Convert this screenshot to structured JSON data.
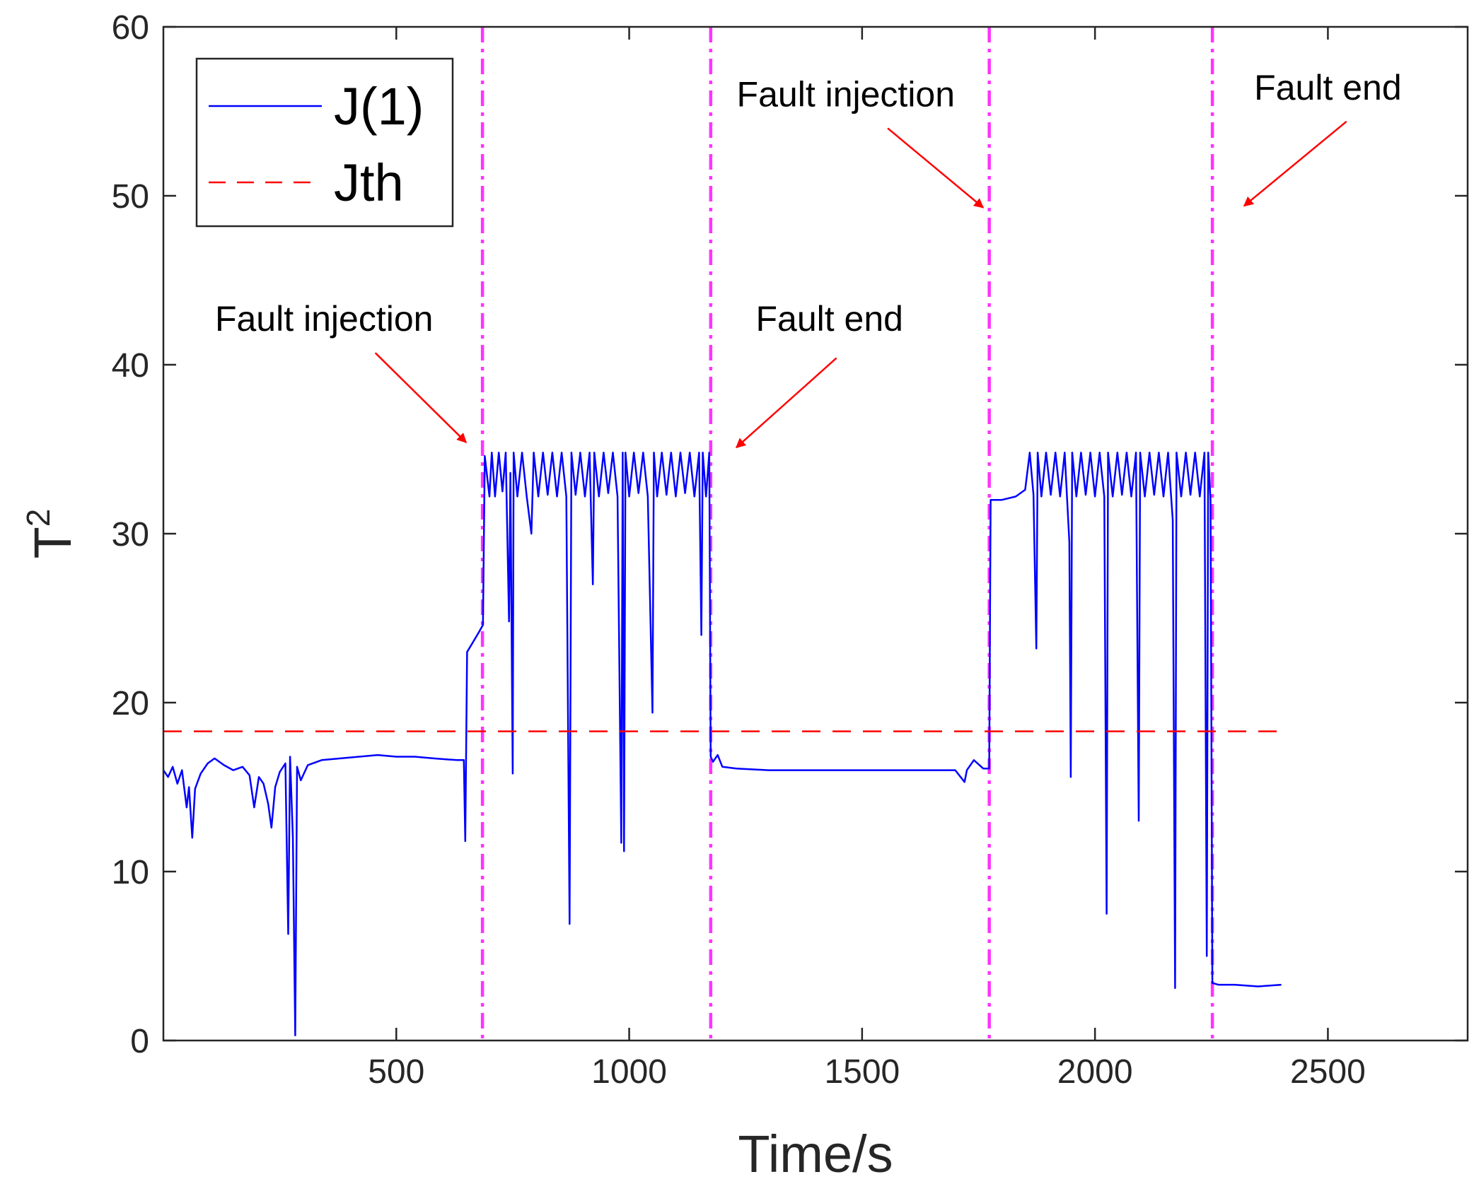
{
  "chart_data": {
    "type": "line",
    "title": "",
    "xlabel": "Time/s",
    "ylabel": "T",
    "ylabel_superscript": "2",
    "xlim": [
      0,
      2800
    ],
    "ylim": [
      0,
      60
    ],
    "xticks": [
      500,
      1000,
      1500,
      2000,
      2500
    ],
    "yticks": [
      0,
      10,
      20,
      30,
      40,
      50,
      60
    ],
    "legend": {
      "position": "top-left",
      "entries": [
        {
          "label": "J(1)",
          "color": "#0000ff",
          "style": "solid"
        },
        {
          "label": "Jth",
          "color": "#ff0000",
          "style": "dashed"
        }
      ]
    },
    "series": [
      {
        "name": "J(1)",
        "color": "#0000ff",
        "points": [
          [
            0,
            16.0
          ],
          [
            10,
            15.6
          ],
          [
            20,
            16.2
          ],
          [
            30,
            15.2
          ],
          [
            40,
            16.0
          ],
          [
            50,
            13.8
          ],
          [
            55,
            15.0
          ],
          [
            62,
            12.0
          ],
          [
            68,
            14.9
          ],
          [
            80,
            15.8
          ],
          [
            95,
            16.4
          ],
          [
            110,
            16.7
          ],
          [
            130,
            16.3
          ],
          [
            150,
            16.0
          ],
          [
            170,
            16.2
          ],
          [
            185,
            15.7
          ],
          [
            195,
            13.8
          ],
          [
            205,
            15.6
          ],
          [
            215,
            15.2
          ],
          [
            225,
            14.0
          ],
          [
            232,
            12.6
          ],
          [
            240,
            15.0
          ],
          [
            250,
            15.9
          ],
          [
            262,
            16.4
          ],
          [
            268,
            6.3
          ],
          [
            272,
            16.8
          ],
          [
            278,
            12.0
          ],
          [
            283,
            0.3
          ],
          [
            287,
            16.2
          ],
          [
            295,
            15.4
          ],
          [
            310,
            16.3
          ],
          [
            340,
            16.6
          ],
          [
            380,
            16.7
          ],
          [
            420,
            16.8
          ],
          [
            460,
            16.9
          ],
          [
            500,
            16.8
          ],
          [
            540,
            16.8
          ],
          [
            580,
            16.7
          ],
          [
            630,
            16.6
          ],
          [
            645,
            16.6
          ],
          [
            648,
            11.8
          ],
          [
            652,
            23.0
          ],
          [
            665,
            23.6
          ],
          [
            678,
            24.2
          ],
          [
            686,
            24.6
          ],
          [
            690,
            34.6
          ],
          [
            700,
            32.2
          ],
          [
            705,
            34.8
          ],
          [
            712,
            32.2
          ],
          [
            720,
            34.8
          ],
          [
            728,
            32.5
          ],
          [
            735,
            34.8
          ],
          [
            742,
            24.8
          ],
          [
            745,
            33.6
          ],
          [
            750,
            15.8
          ],
          [
            752,
            34.8
          ],
          [
            760,
            32.2
          ],
          [
            770,
            34.8
          ],
          [
            780,
            32.2
          ],
          [
            790,
            30.0
          ],
          [
            795,
            34.8
          ],
          [
            805,
            32.2
          ],
          [
            815,
            34.8
          ],
          [
            825,
            32.3
          ],
          [
            835,
            34.8
          ],
          [
            845,
            32.2
          ],
          [
            855,
            34.8
          ],
          [
            865,
            32.2
          ],
          [
            872,
            6.9
          ],
          [
            876,
            34.8
          ],
          [
            885,
            32.3
          ],
          [
            895,
            34.8
          ],
          [
            905,
            32.2
          ],
          [
            915,
            34.8
          ],
          [
            922,
            27.0
          ],
          [
            925,
            34.8
          ],
          [
            935,
            32.2
          ],
          [
            945,
            34.8
          ],
          [
            955,
            32.4
          ],
          [
            965,
            34.8
          ],
          [
            975,
            32.2
          ],
          [
            983,
            11.7
          ],
          [
            986,
            34.8
          ],
          [
            989,
            11.2
          ],
          [
            992,
            34.8
          ],
          [
            1000,
            32.2
          ],
          [
            1010,
            34.8
          ],
          [
            1020,
            32.4
          ],
          [
            1030,
            34.8
          ],
          [
            1040,
            32.2
          ],
          [
            1050,
            19.4
          ],
          [
            1053,
            34.8
          ],
          [
            1060,
            32.2
          ],
          [
            1070,
            34.8
          ],
          [
            1080,
            32.3
          ],
          [
            1090,
            34.8
          ],
          [
            1100,
            32.2
          ],
          [
            1110,
            34.8
          ],
          [
            1120,
            32.4
          ],
          [
            1130,
            34.8
          ],
          [
            1140,
            32.2
          ],
          [
            1150,
            34.8
          ],
          [
            1155,
            24.0
          ],
          [
            1158,
            34.8
          ],
          [
            1165,
            32.2
          ],
          [
            1172,
            34.8
          ],
          [
            1175,
            16.8
          ],
          [
            1180,
            16.5
          ],
          [
            1190,
            16.9
          ],
          [
            1200,
            16.2
          ],
          [
            1230,
            16.1
          ],
          [
            1300,
            16.0
          ],
          [
            1400,
            16.0
          ],
          [
            1500,
            16.0
          ],
          [
            1600,
            16.0
          ],
          [
            1700,
            16.0
          ],
          [
            1720,
            15.3
          ],
          [
            1725,
            16.0
          ],
          [
            1740,
            16.6
          ],
          [
            1760,
            16.1
          ],
          [
            1773,
            16.1
          ],
          [
            1776,
            32.0
          ],
          [
            1800,
            32.0
          ],
          [
            1830,
            32.2
          ],
          [
            1850,
            32.6
          ],
          [
            1860,
            34.8
          ],
          [
            1868,
            32.3
          ],
          [
            1874,
            23.2
          ],
          [
            1877,
            34.8
          ],
          [
            1885,
            32.2
          ],
          [
            1895,
            34.8
          ],
          [
            1905,
            32.3
          ],
          [
            1915,
            34.8
          ],
          [
            1925,
            32.2
          ],
          [
            1935,
            34.8
          ],
          [
            1945,
            29.5
          ],
          [
            1948,
            15.6
          ],
          [
            1951,
            34.8
          ],
          [
            1960,
            32.2
          ],
          [
            1970,
            34.8
          ],
          [
            1980,
            32.3
          ],
          [
            1990,
            34.8
          ],
          [
            2000,
            32.2
          ],
          [
            2010,
            34.8
          ],
          [
            2020,
            32.2
          ],
          [
            2025,
            7.5
          ],
          [
            2028,
            34.8
          ],
          [
            2038,
            32.2
          ],
          [
            2048,
            34.8
          ],
          [
            2058,
            32.3
          ],
          [
            2068,
            34.8
          ],
          [
            2078,
            32.2
          ],
          [
            2088,
            34.8
          ],
          [
            2094,
            13.0
          ],
          [
            2097,
            34.8
          ],
          [
            2107,
            32.2
          ],
          [
            2117,
            34.8
          ],
          [
            2127,
            32.3
          ],
          [
            2137,
            34.8
          ],
          [
            2147,
            32.2
          ],
          [
            2157,
            34.8
          ],
          [
            2167,
            30.8
          ],
          [
            2172,
            3.1
          ],
          [
            2175,
            34.8
          ],
          [
            2185,
            32.2
          ],
          [
            2195,
            34.8
          ],
          [
            2205,
            32.3
          ],
          [
            2215,
            34.8
          ],
          [
            2225,
            32.2
          ],
          [
            2235,
            34.8
          ],
          [
            2240,
            5.0
          ],
          [
            2243,
            34.8
          ],
          [
            2248,
            32.0
          ],
          [
            2252,
            3.4
          ],
          [
            2265,
            3.3
          ],
          [
            2300,
            3.3
          ],
          [
            2350,
            3.2
          ],
          [
            2400,
            3.3
          ]
        ]
      },
      {
        "name": "Jth",
        "color": "#ff0000",
        "points": [
          [
            0,
            18.3
          ],
          [
            2400,
            18.3
          ]
        ]
      }
    ],
    "vertical_lines": [
      {
        "x": 685,
        "color": "#ff33ff",
        "style": "dashdot"
      },
      {
        "x": 1175,
        "color": "#ff33ff",
        "style": "dashdot"
      },
      {
        "x": 1773,
        "color": "#ff33ff",
        "style": "dashdot"
      },
      {
        "x": 2252,
        "color": "#ff33ff",
        "style": "dashdot"
      }
    ],
    "annotations": [
      {
        "text": "Fault injection",
        "text_at": [
          345,
          42.0
        ],
        "arrow_from": [
          455,
          40.7
        ],
        "arrow_to": [
          650,
          35.4
        ]
      },
      {
        "text": "Fault end",
        "text_at": [
          1430,
          42.0
        ],
        "arrow_from": [
          1445,
          40.4
        ],
        "arrow_to": [
          1230,
          35.1
        ]
      },
      {
        "text": "Fault injection",
        "text_at": [
          1465,
          55.3
        ],
        "arrow_from": [
          1555,
          54.0
        ],
        "arrow_to": [
          1760,
          49.3
        ]
      },
      {
        "text": "Fault end",
        "text_at": [
          2500,
          55.7
        ],
        "arrow_from": [
          2540,
          54.4
        ],
        "arrow_to": [
          2320,
          49.4
        ]
      }
    ],
    "grid": false
  }
}
